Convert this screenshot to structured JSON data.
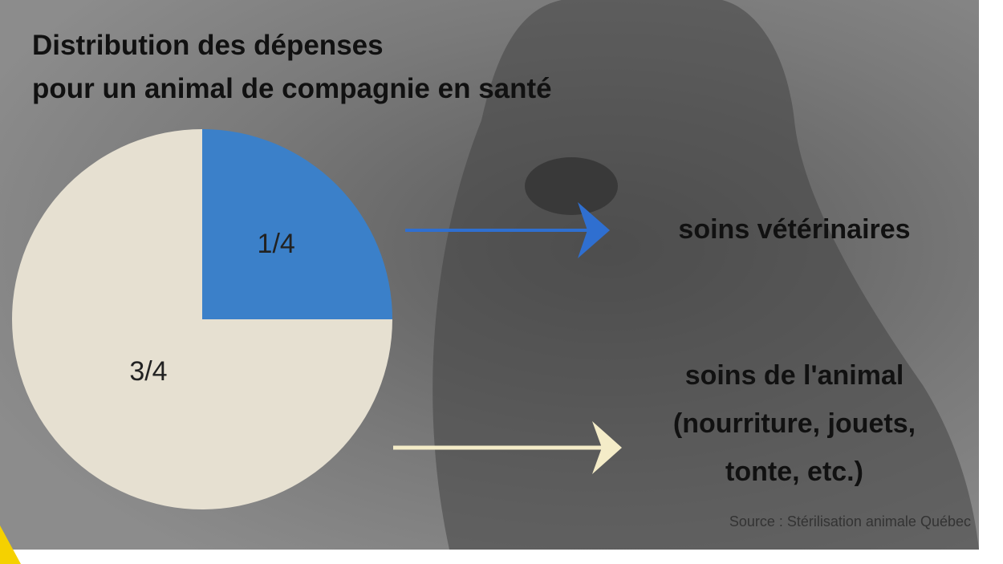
{
  "chart_data": {
    "type": "pie",
    "title": "Distribution des dépenses\npour un animal de compagnie en santé",
    "categories": [
      "soins vétérinaires",
      "soins de l'animal\n(nourriture, jouets,\ntonte, etc.)"
    ],
    "values": [
      0.25,
      0.75
    ],
    "value_labels": [
      "1/4",
      "3/4"
    ],
    "colors": [
      "#3b80c9",
      "#e6e0d1"
    ],
    "source": "Source : Stérilisation animale Québec"
  }
}
